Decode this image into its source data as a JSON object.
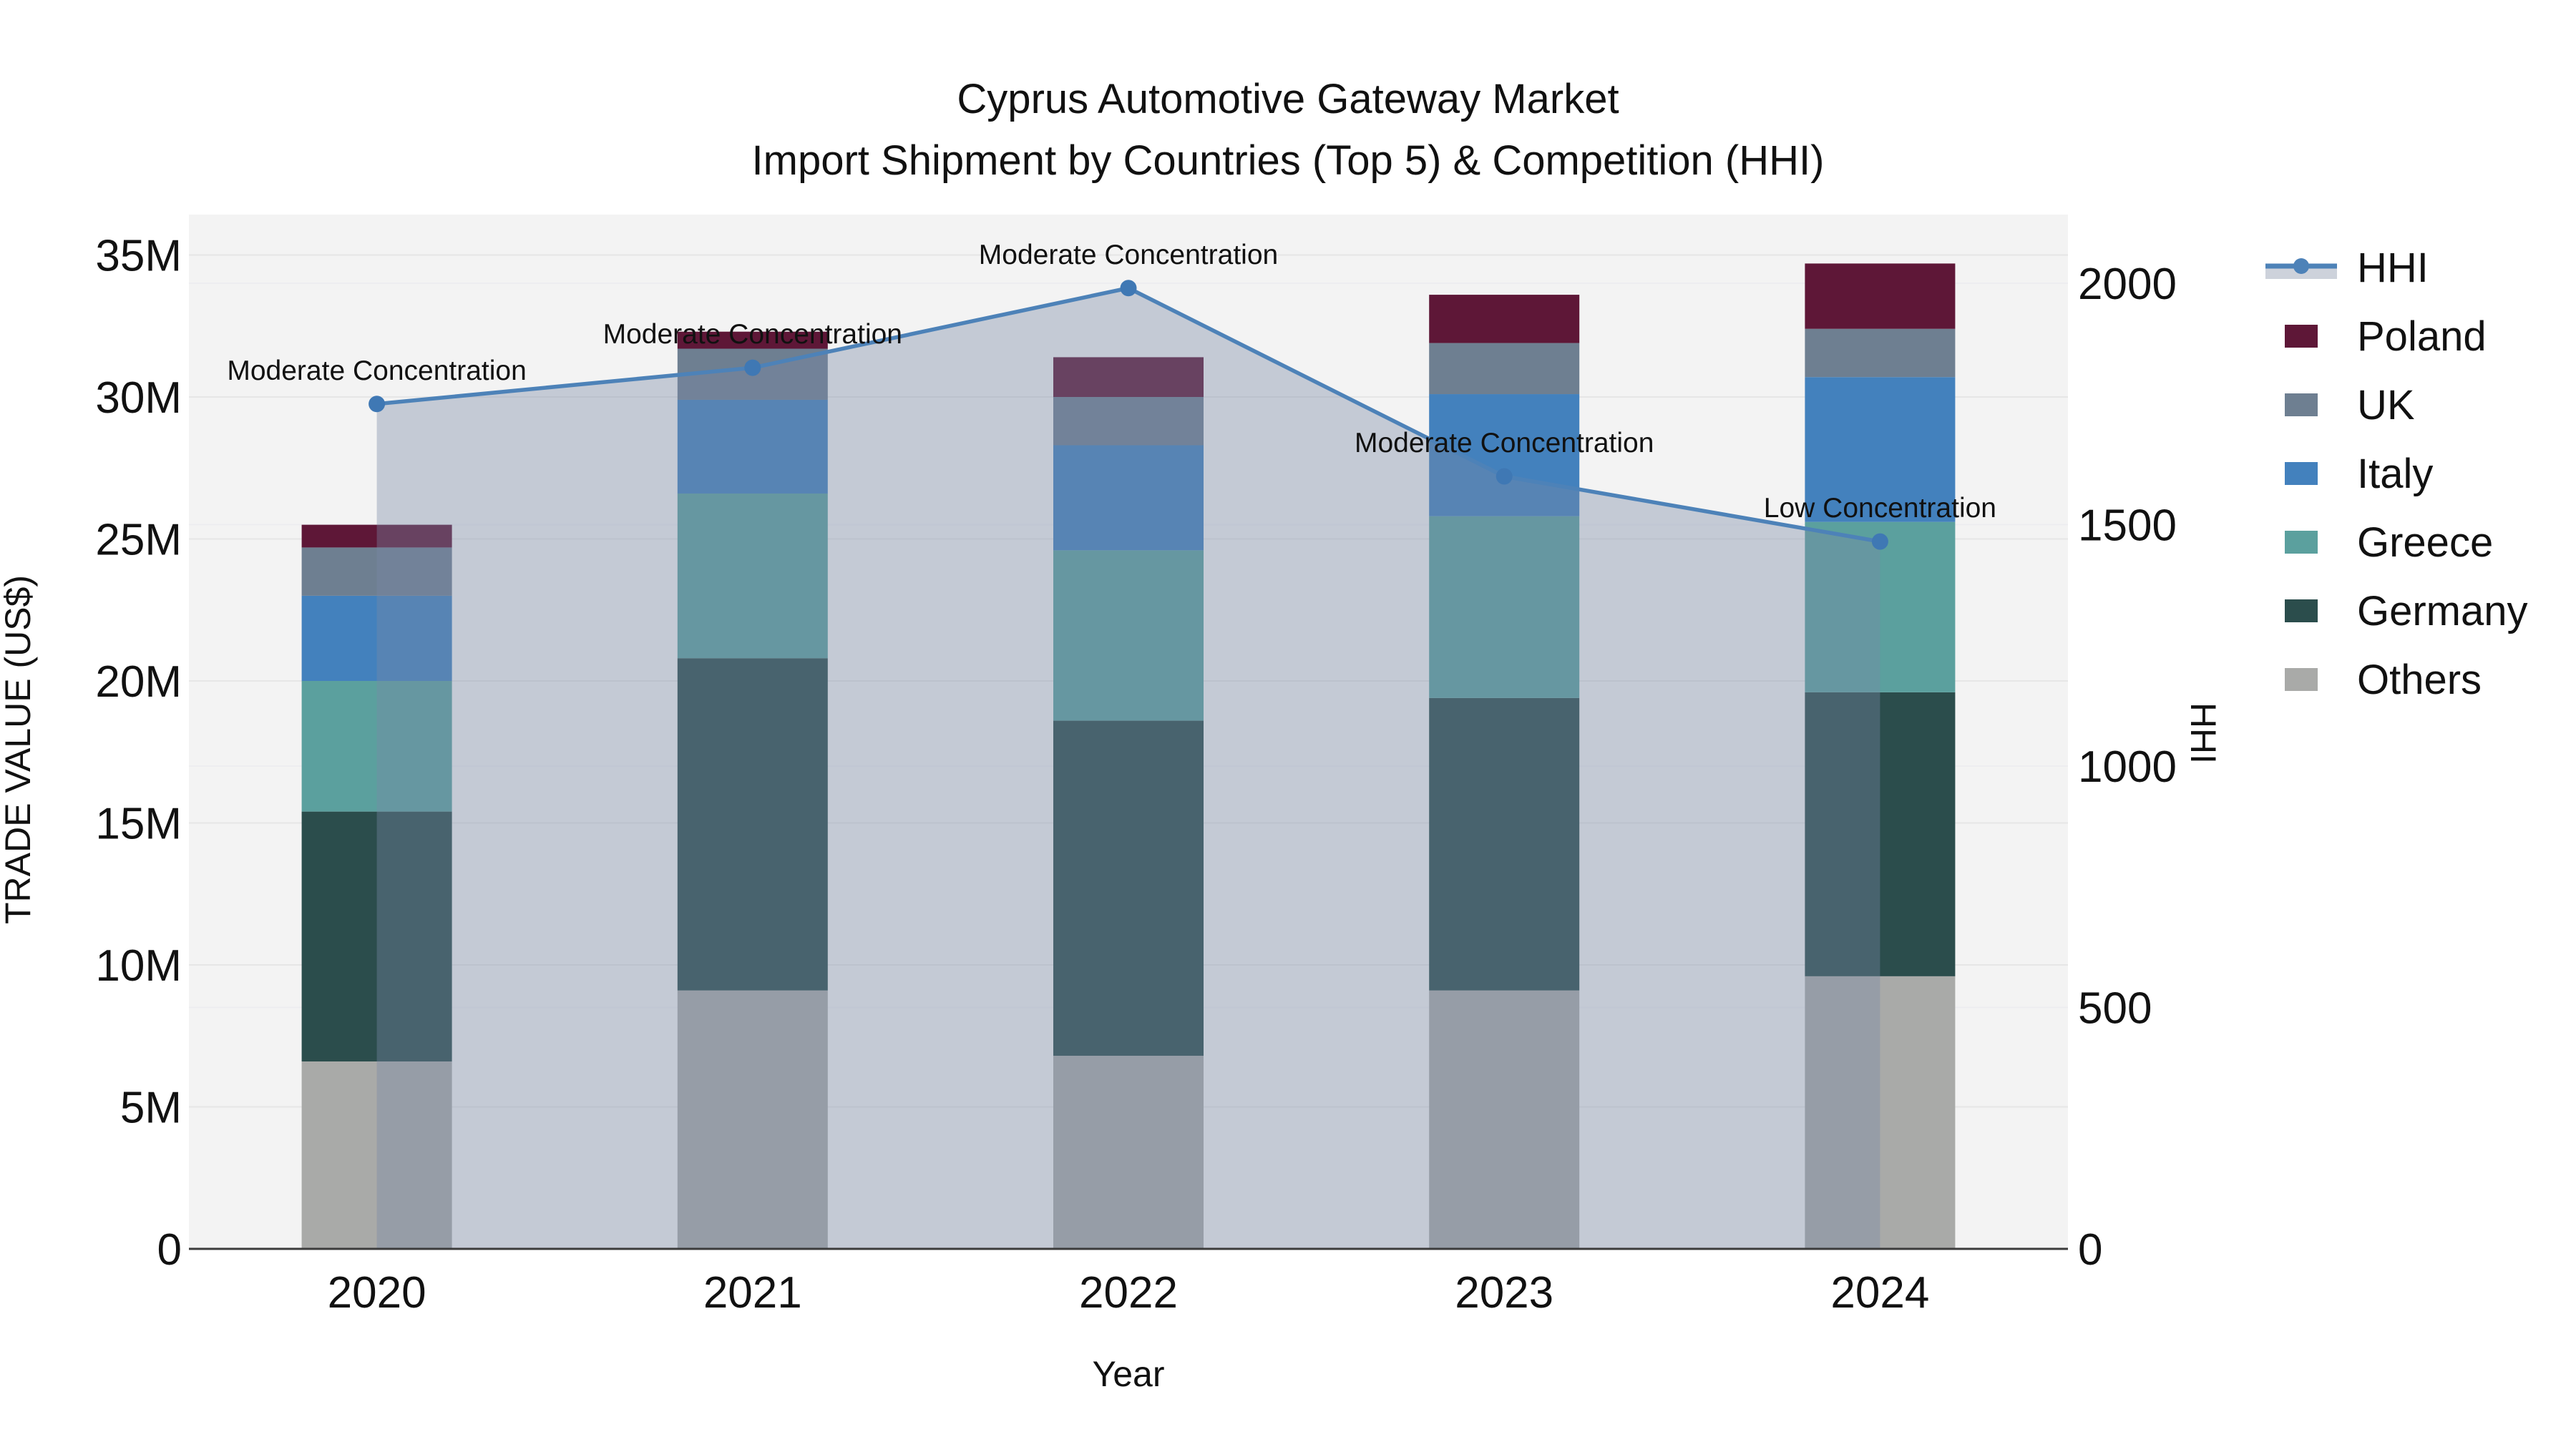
{
  "title": {
    "line1": "Cyprus Automotive Gateway Market",
    "line2": "Import Shipment by Countries (Top 5) & Competition (HHI)"
  },
  "axis_left": {
    "title": "TRADE VALUE (US$)",
    "tick_labels": [
      "0",
      "5M",
      "10M",
      "15M",
      "20M",
      "25M",
      "30M",
      "35M"
    ],
    "tick_values": [
      0,
      5,
      10,
      15,
      20,
      25,
      30,
      35
    ]
  },
  "axis_right": {
    "title": "HHI",
    "tick_labels": [
      "0",
      "500",
      "1000",
      "1500",
      "2000"
    ],
    "tick_values": [
      0,
      500,
      1000,
      1500,
      2000
    ]
  },
  "axis_x": {
    "title": "Year",
    "categories": [
      "2020",
      "2021",
      "2022",
      "2023",
      "2024"
    ]
  },
  "legend": {
    "items": [
      {
        "id": "hhi",
        "label": "HHI",
        "type": "line",
        "color": "#4d82b8"
      },
      {
        "id": "poland",
        "label": "Poland",
        "type": "swatch",
        "color": "#5e1737"
      },
      {
        "id": "uk",
        "label": "UK",
        "type": "swatch",
        "color": "#6e7f91"
      },
      {
        "id": "italy",
        "label": "Italy",
        "type": "swatch",
        "color": "#4381bd"
      },
      {
        "id": "greece",
        "label": "Greece",
        "type": "swatch",
        "color": "#5ba09e"
      },
      {
        "id": "germany",
        "label": "Germany",
        "type": "swatch",
        "color": "#2b4d4c"
      },
      {
        "id": "others",
        "label": "Others",
        "type": "swatch",
        "color": "#a9aaa8"
      }
    ]
  },
  "chart_data": [
    {
      "type": "bar",
      "stacked": true,
      "title": "Import shipment trade value by country (stacked, millions US$)",
      "categories": [
        "2020",
        "2021",
        "2022",
        "2023",
        "2024"
      ],
      "series": [
        {
          "name": "Others",
          "color": "#a9aaa8",
          "values": [
            6.6,
            9.1,
            6.8,
            9.1,
            9.6
          ]
        },
        {
          "name": "Germany",
          "color": "#2b4d4c",
          "values": [
            8.8,
            11.7,
            11.8,
            10.3,
            10.0
          ]
        },
        {
          "name": "Greece",
          "color": "#5ba09e",
          "values": [
            4.6,
            5.8,
            6.0,
            6.4,
            6.0
          ]
        },
        {
          "name": "Italy",
          "color": "#4381bd",
          "values": [
            3.0,
            3.3,
            3.7,
            4.3,
            5.1
          ]
        },
        {
          "name": "UK",
          "color": "#6e7f91",
          "values": [
            1.7,
            1.8,
            1.7,
            1.8,
            1.7
          ]
        },
        {
          "name": "Poland",
          "color": "#5e1737",
          "values": [
            0.8,
            0.6,
            1.4,
            1.7,
            2.3
          ]
        }
      ],
      "xlabel": "Year",
      "ylabel": "TRADE VALUE (US$)",
      "ylim": [
        0,
        36.4
      ],
      "grid": true,
      "legend_position": "right-top"
    },
    {
      "type": "line",
      "name": "HHI",
      "axis": "right",
      "categories": [
        "2020",
        "2021",
        "2022",
        "2023",
        "2024"
      ],
      "values": [
        1750,
        1825,
        1990,
        1600,
        1465
      ],
      "color": "#4d82b8",
      "marker_color": "#3f78b4",
      "area_fill": "rgba(122,138,166,0.38)",
      "ylabel": "HHI",
      "ylim": [
        0,
        2000
      ]
    }
  ],
  "annotations": [
    {
      "year": "2020",
      "text": "Moderate Concentration"
    },
    {
      "year": "2021",
      "text": "Moderate Concentration"
    },
    {
      "year": "2022",
      "text": "Moderate Concentration"
    },
    {
      "year": "2023",
      "text": "Moderate Concentration"
    },
    {
      "year": "2024",
      "text": "Low Concentration"
    }
  ],
  "colors": {
    "plot_bg": "#f3f3f3",
    "grid_left": "#e6e6e6",
    "grid_right": "#ededf0",
    "baseline": "#3b3b3b",
    "text": "#111111"
  }
}
